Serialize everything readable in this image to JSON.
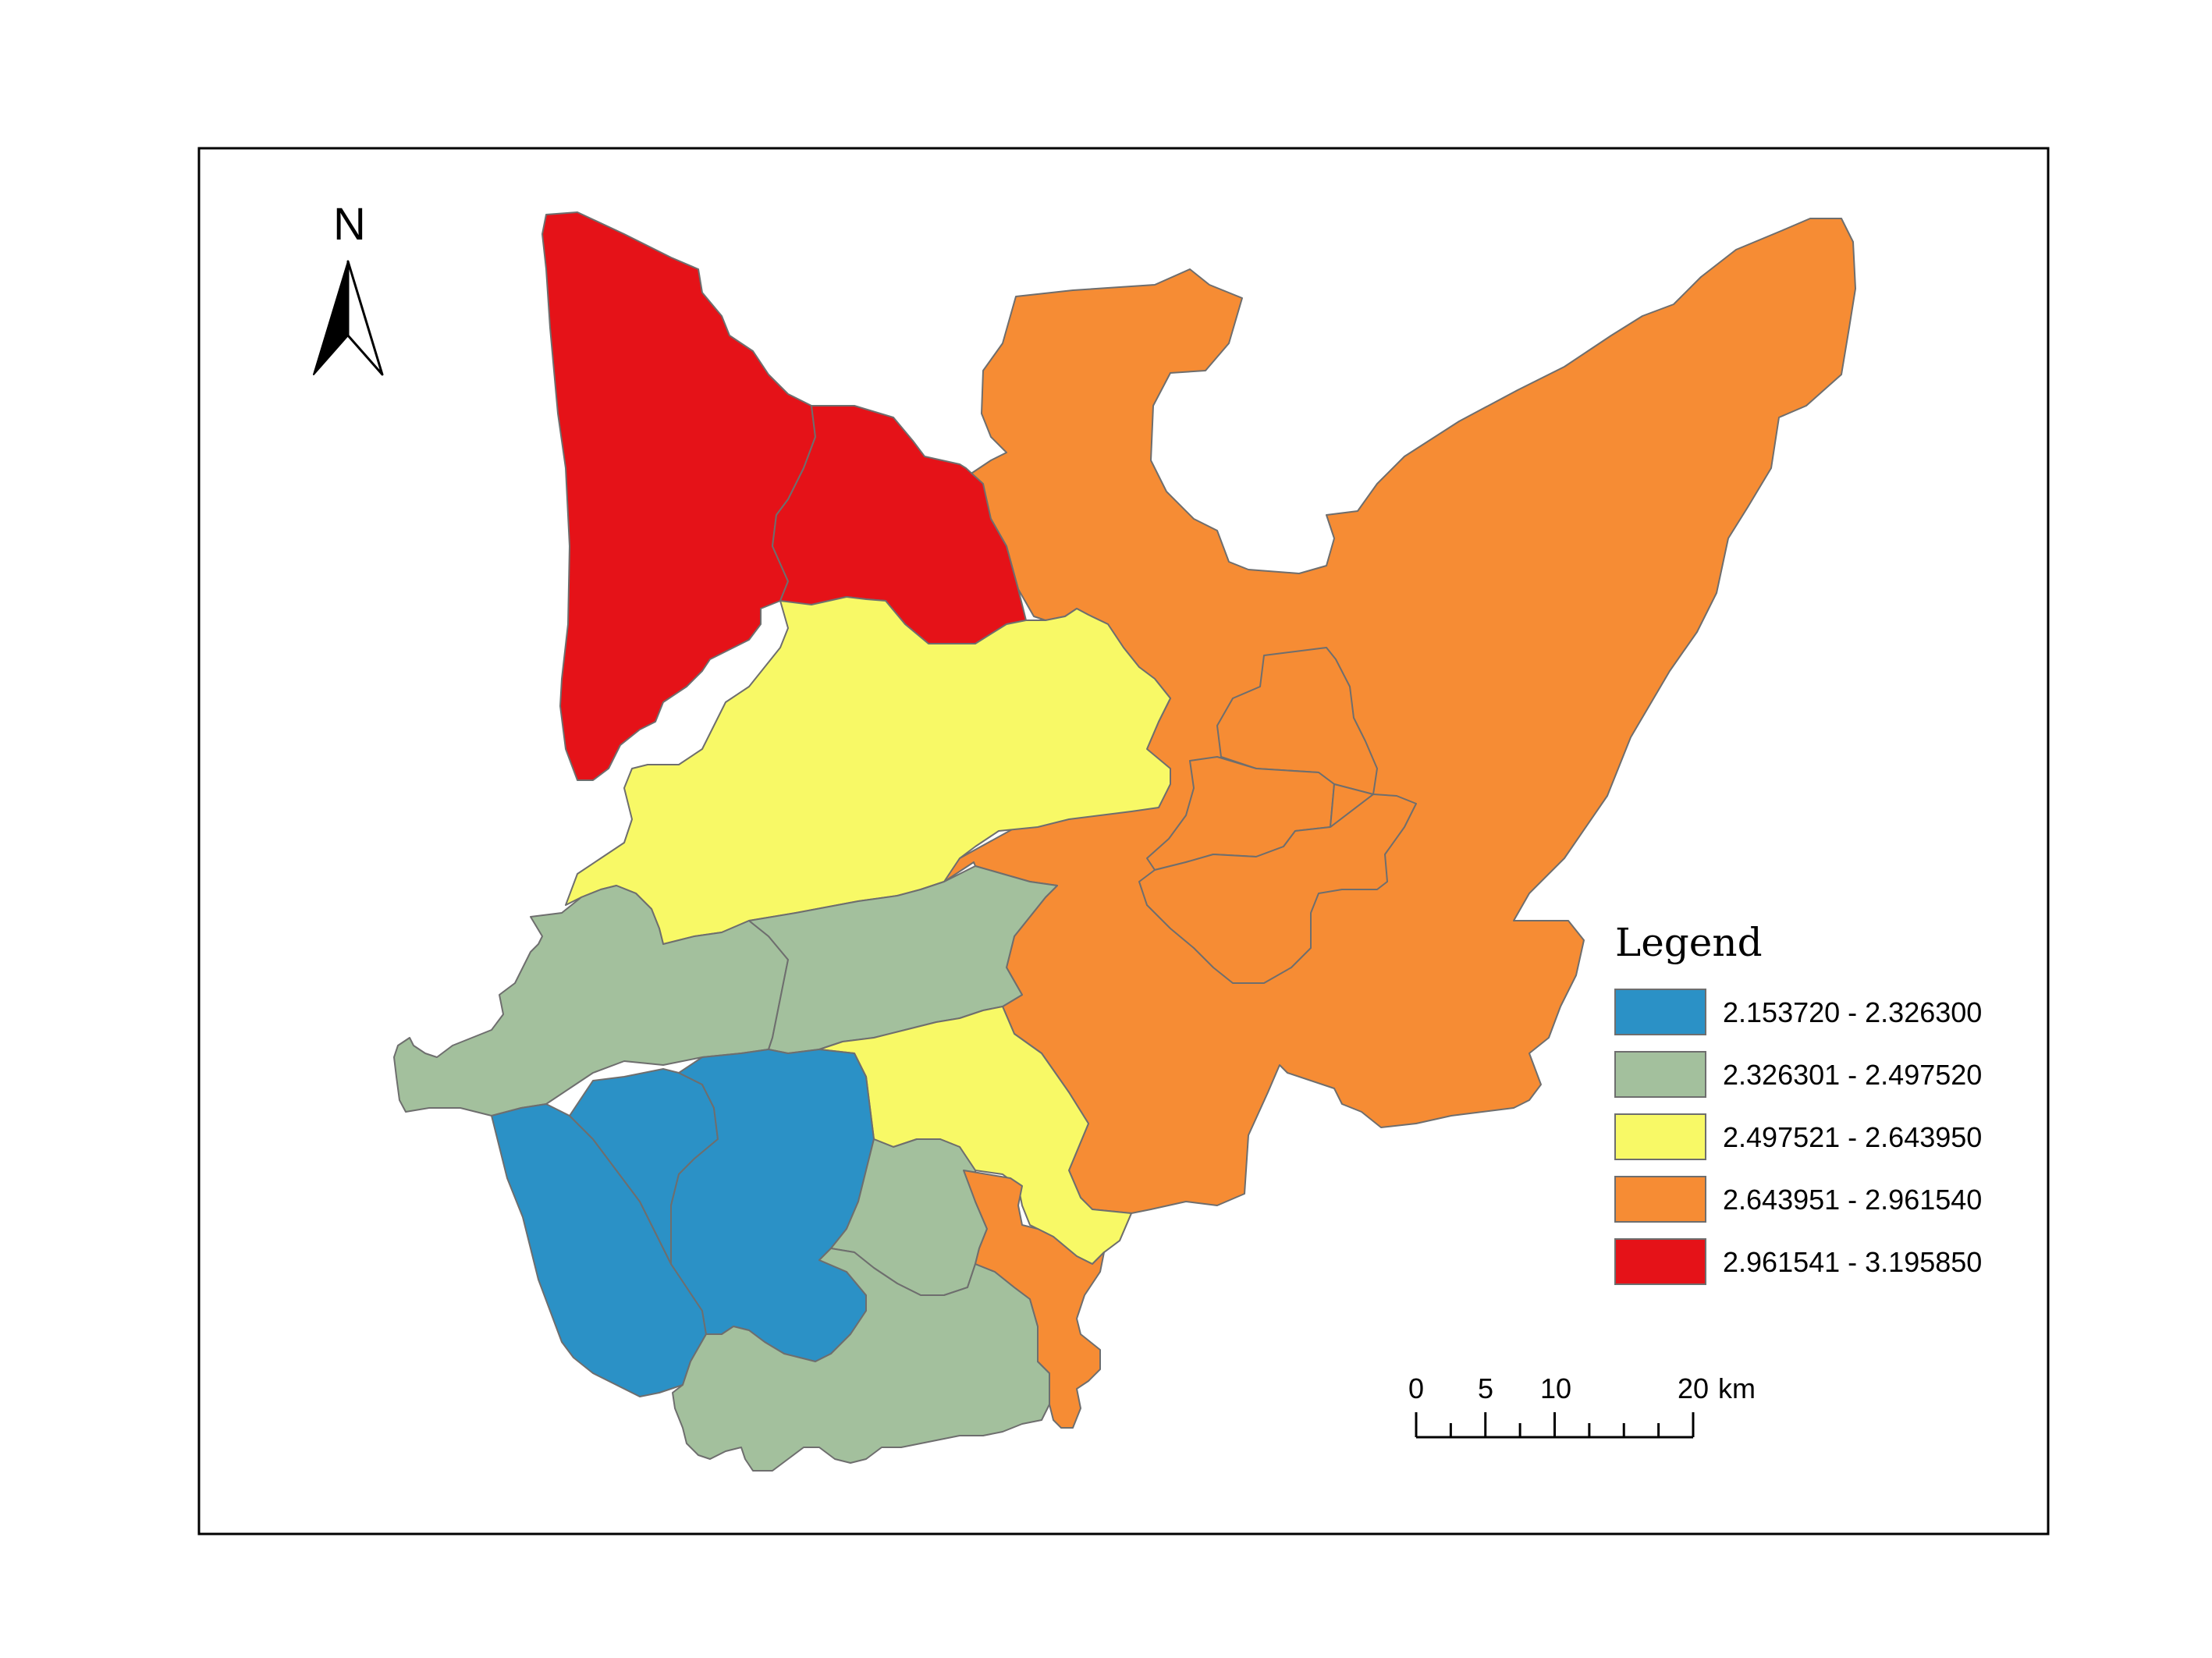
{
  "north_arrow": {
    "label": "N"
  },
  "legend": {
    "title": "Legend",
    "classes": [
      {
        "label": "2.153720 - 2.326300",
        "color": "#2b91c6"
      },
      {
        "label": "2.326301 - 2.497520",
        "color": "#a3c09d"
      },
      {
        "label": "2.497521 - 2.643950",
        "color": "#f8f966"
      },
      {
        "label": "2.643951 - 2.961540",
        "color": "#f68c34"
      },
      {
        "label": "2.961541 - 3.195850",
        "color": "#e51218"
      }
    ]
  },
  "scale_bar": {
    "ticks": [
      "0",
      "5",
      "10",
      "20"
    ],
    "unit": "km"
  },
  "regions": [
    {
      "id": "north-west-a",
      "class_index": 4
    },
    {
      "id": "north-west-b",
      "class_index": 4
    },
    {
      "id": "central-north",
      "class_index": 2
    },
    {
      "id": "central-south",
      "class_index": 2
    },
    {
      "id": "west-band",
      "class_index": 1
    },
    {
      "id": "central-band",
      "class_index": 1
    },
    {
      "id": "south-a",
      "class_index": 1
    },
    {
      "id": "south-b",
      "class_index": 1
    },
    {
      "id": "south-west-a",
      "class_index": 0
    },
    {
      "id": "south-west-b",
      "class_index": 0
    },
    {
      "id": "south-west-c",
      "class_index": 0
    },
    {
      "id": "east-main",
      "class_index": 3
    },
    {
      "id": "east-inner-a",
      "class_index": 3
    },
    {
      "id": "east-inner-b",
      "class_index": 3
    },
    {
      "id": "east-inner-c",
      "class_index": 3
    },
    {
      "id": "east-inner-d",
      "class_index": 3
    },
    {
      "id": "south-strip",
      "class_index": 3
    }
  ]
}
